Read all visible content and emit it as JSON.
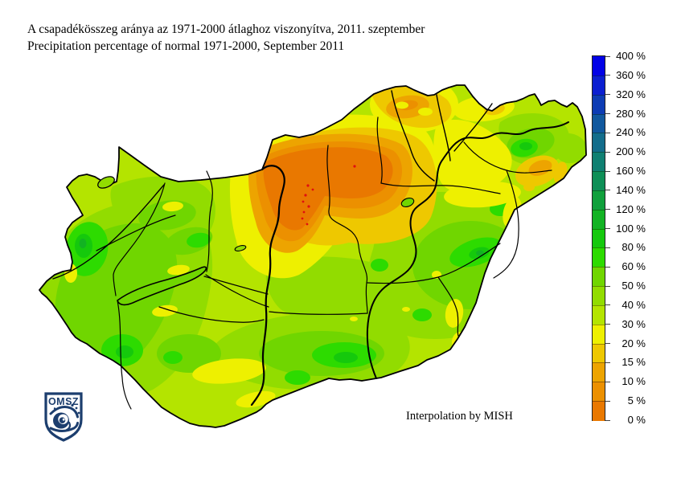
{
  "title": {
    "hu": "A csapadékösszeg aránya az 1971-2000 átlaghoz viszonyítva, 2011. szeptember",
    "en": "Precipitation percentage of normal 1971-2000, September 2011"
  },
  "attribution": "Interpolation by MISH",
  "logo": {
    "text": "OMSZ",
    "color": "#1c3e6e"
  },
  "legend": {
    "unit": "%",
    "labels": [
      "400 %",
      "360 %",
      "320 %",
      "280 %",
      "240 %",
      "200 %",
      "160 %",
      "140 %",
      "120 %",
      "100 %",
      "80 %",
      "60 %",
      "50 %",
      "40 %",
      "30 %",
      "20 %",
      "15 %",
      "10 %",
      "5 %",
      "0 %"
    ],
    "values": [
      400,
      360,
      320,
      280,
      240,
      200,
      160,
      140,
      120,
      100,
      80,
      60,
      50,
      40,
      30,
      20,
      15,
      10,
      5,
      0
    ],
    "colors": [
      "#0202e6",
      "#0b1fd1",
      "#0d3cb4",
      "#11589e",
      "#136d8b",
      "#108072",
      "#0e8f57",
      "#10a03c",
      "#13b324",
      "#16c90e",
      "#2ddb00",
      "#70d600",
      "#92dc00",
      "#b4e400",
      "#eef000",
      "#eec800",
      "#eda400",
      "#ec9000",
      "#e97800"
    ]
  },
  "map": {
    "region": "Hungary",
    "border_color": "#000000",
    "background": "#ffffff",
    "station_dot_color": "#e01010"
  }
}
